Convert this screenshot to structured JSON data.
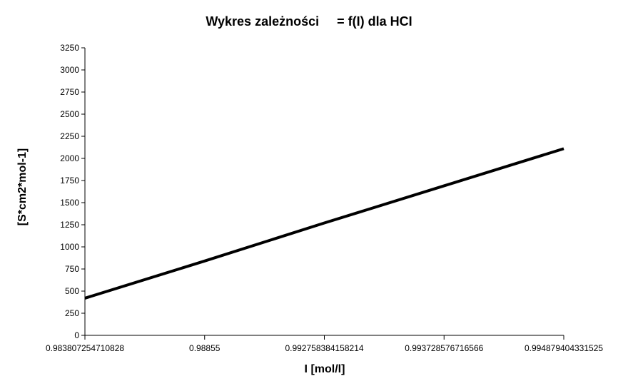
{
  "chart_data": {
    "type": "line",
    "title": "Wykres zależności     = f(I) dla HCI",
    "xlabel": "I [mol/l]",
    "ylabel": "[S*cm2*mol-1]",
    "x_ticks": [
      "0.983807254710828",
      "0.98855",
      "0.992758384158214",
      "0.993728576716566",
      "0.994879404331525"
    ],
    "y_ticks": [
      0,
      250,
      500,
      750,
      1000,
      1250,
      1500,
      1750,
      2000,
      2250,
      2500,
      2750,
      3000,
      3250
    ],
    "ylim": [
      0,
      3250
    ],
    "grid": false,
    "legend": "none",
    "series": [
      {
        "x_tick_index": [
          0,
          1,
          2,
          3,
          4
        ],
        "values": [
          420,
          840,
          1270,
          1690,
          2110
        ]
      }
    ],
    "line_color": "#000000"
  }
}
